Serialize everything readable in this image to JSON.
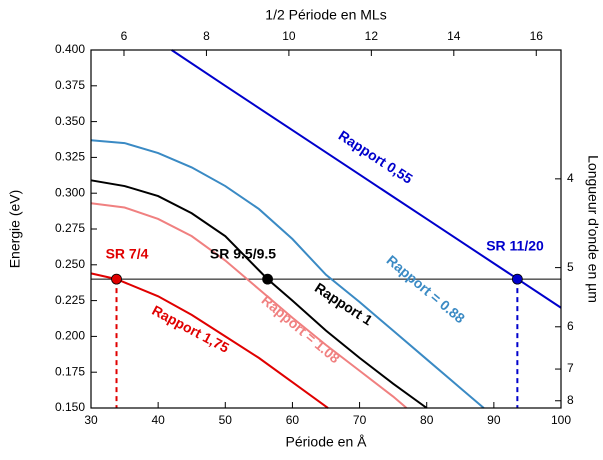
{
  "chart_data": {
    "type": "line",
    "xlabel": "Période en Å",
    "ylabel": "Energie (eV)",
    "x2label": "1/2 Période en MLs",
    "y2label": "Longueur d'onde en µm",
    "xlim": [
      30,
      100
    ],
    "xticks": [
      30,
      40,
      50,
      60,
      70,
      80,
      90,
      100
    ],
    "ylim": [
      0.15,
      0.4
    ],
    "yticks": [
      {
        "value": 0.15,
        "label": "0.150"
      },
      {
        "value": 0.175,
        "label": "0.175"
      },
      {
        "value": 0.2,
        "label": "0.200"
      },
      {
        "value": 0.225,
        "label": "0.225"
      },
      {
        "value": 0.25,
        "label": "0.250"
      },
      {
        "value": 0.275,
        "label": "0.275"
      },
      {
        "value": 0.3,
        "label": "0.300"
      },
      {
        "value": 0.325,
        "label": "0.325"
      },
      {
        "value": 0.35,
        "label": "0.350"
      },
      {
        "value": 0.375,
        "label": "0.375"
      },
      {
        "value": 0.4,
        "label": "0.400"
      }
    ],
    "x2lim": [
      5.2,
      16.6
    ],
    "x2ticks": [
      6,
      8,
      10,
      12,
      14,
      16
    ],
    "y2scale": "reciprocal",
    "y2lim": [
      8.27,
      3.1
    ],
    "y2ticks": [
      4,
      5,
      6,
      7,
      8
    ],
    "hline": 0.24,
    "series": [
      {
        "name": "Rapport 0,55",
        "color": "#0000cc",
        "x": [
          42,
          50,
          60,
          70,
          80,
          90,
          100
        ],
        "values": [
          0.4,
          0.375,
          0.344,
          0.313,
          0.282,
          0.251,
          0.22
        ]
      },
      {
        "name": "Rapport = 0.88",
        "color": "#3a8ac4",
        "x": [
          30,
          35,
          40,
          45,
          50,
          55,
          60,
          65,
          70,
          75,
          80,
          85,
          88.5
        ],
        "values": [
          0.337,
          0.335,
          0.328,
          0.318,
          0.305,
          0.289,
          0.268,
          0.243,
          0.224,
          0.204,
          0.184,
          0.164,
          0.15
        ]
      },
      {
        "name": "Rapport 1",
        "color": "#000000",
        "x": [
          30,
          35,
          40,
          45,
          50,
          56.3,
          60,
          65,
          70,
          75,
          80
        ],
        "values": [
          0.309,
          0.305,
          0.298,
          0.286,
          0.27,
          0.24,
          0.225,
          0.204,
          0.185,
          0.167,
          0.15
        ]
      },
      {
        "name": "Rapport = 1.08",
        "color": "#f08080",
        "x": [
          30,
          35,
          40,
          45,
          50,
          55,
          60,
          65,
          70,
          75,
          77
        ],
        "values": [
          0.293,
          0.29,
          0.282,
          0.27,
          0.253,
          0.233,
          0.213,
          0.194,
          0.176,
          0.158,
          0.15
        ]
      },
      {
        "name": "Rapport 1,75",
        "color": "#e00000",
        "x": [
          30,
          33.8,
          40,
          45,
          50,
          55,
          60,
          65,
          65.3
        ],
        "values": [
          0.244,
          0.24,
          0.228,
          0.215,
          0.2,
          0.185,
          0.168,
          0.151,
          0.15
        ]
      }
    ],
    "points": [
      {
        "name": "SR 7/4",
        "color": "#e00000",
        "x": 33.8,
        "y": 0.24,
        "dashed": true
      },
      {
        "name": "SR 9.5/9.5",
        "color": "#000000",
        "x": 56.3,
        "y": 0.24,
        "dashed": false
      },
      {
        "name": "SR 11/20",
        "color": "#0000cc",
        "x": 93.5,
        "y": 0.24,
        "dashed": true
      }
    ]
  }
}
